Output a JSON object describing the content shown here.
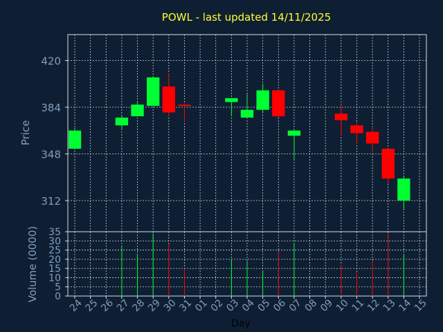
{
  "colors": {
    "background": "#0f1f33",
    "title": "#ffff33",
    "axis_text": "#7f9fbf",
    "grid": "#c8d2dc",
    "frame": "#d8dee6",
    "up": "#00ff33",
    "down": "#ff0000"
  },
  "chart_data": {
    "type": "candlestick",
    "title": "POWL - last updated 14/11/2025",
    "xlabel": "Day",
    "ylabel_price": "Price",
    "ylabel_volume": "Volume (0000)",
    "price_ylim": [
      288,
      440
    ],
    "price_ticks": [
      312,
      348,
      384,
      420
    ],
    "volume_ylim": [
      0,
      35
    ],
    "volume_ticks": [
      0,
      5,
      10,
      15,
      20,
      25,
      30,
      35
    ],
    "grid": true,
    "x_ticks": [
      "24",
      "25",
      "26",
      "27",
      "28",
      "29",
      "30",
      "31",
      "01",
      "02",
      "03",
      "04",
      "05",
      "06",
      "07",
      "08",
      "09",
      "10",
      "11",
      "12",
      "13",
      "14",
      "15"
    ],
    "candles": [
      {
        "x": "24",
        "open": 352,
        "high": 368,
        "low": 352,
        "close": 366,
        "volume": 0
      },
      {
        "x": "27",
        "open": 370,
        "high": 377,
        "low": 367,
        "close": 376,
        "volume": 27
      },
      {
        "x": "28",
        "open": 377,
        "high": 388,
        "low": 377,
        "close": 386,
        "volume": 23
      },
      {
        "x": "29",
        "open": 385,
        "high": 408,
        "low": 385,
        "close": 407,
        "volume": 34
      },
      {
        "x": "30",
        "open": 400,
        "high": 410,
        "low": 377,
        "close": 380,
        "volume": 28
      },
      {
        "x": "31",
        "open": 386,
        "high": 387,
        "low": 373,
        "close": 385,
        "volume": 15
      },
      {
        "x": "03",
        "open": 388,
        "high": 391,
        "low": 377,
        "close": 391,
        "volume": 20
      },
      {
        "x": "04",
        "open": 376,
        "high": 394,
        "low": 375,
        "close": 382,
        "volume": 19
      },
      {
        "x": "05",
        "open": 382,
        "high": 402,
        "low": 380,
        "close": 397,
        "volume": 14
      },
      {
        "x": "06",
        "open": 397,
        "high": 397,
        "low": 376,
        "close": 377,
        "volume": 24
      },
      {
        "x": "07",
        "open": 362,
        "high": 367,
        "low": 344,
        "close": 366,
        "volume": 29
      },
      {
        "x": "10",
        "open": 379,
        "high": 386,
        "low": 362,
        "close": 374,
        "volume": 17
      },
      {
        "x": "11",
        "open": 370,
        "high": 372,
        "low": 356,
        "close": 364,
        "volume": 13
      },
      {
        "x": "12",
        "open": 365,
        "high": 369,
        "low": 349,
        "close": 356,
        "volume": 19
      },
      {
        "x": "13",
        "open": 352,
        "high": 352,
        "low": 325,
        "close": 329,
        "volume": 34
      },
      {
        "x": "14",
        "open": 312,
        "high": 331,
        "low": 305,
        "close": 329,
        "volume": 23
      }
    ]
  }
}
